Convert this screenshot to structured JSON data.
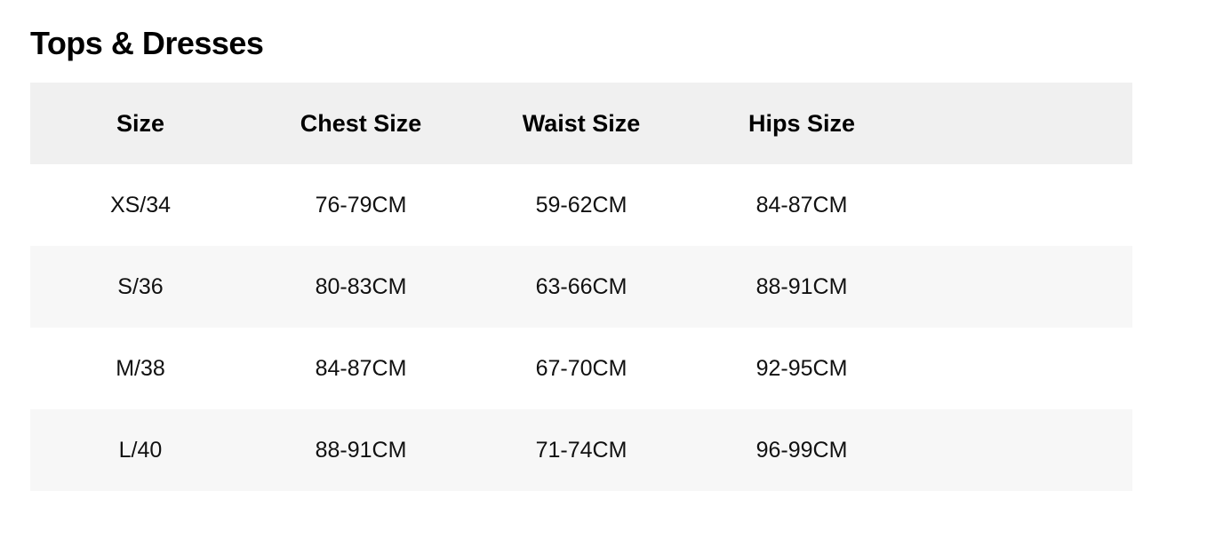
{
  "title": "Tops & Dresses",
  "table": {
    "headers": [
      "Size",
      "Chest Size",
      "Waist Size",
      "Hips Size",
      ""
    ],
    "rows": [
      [
        "XS/34",
        "76-79CM",
        "59-62CM",
        "84-87CM",
        ""
      ],
      [
        "S/36",
        "80-83CM",
        "63-66CM",
        "88-91CM",
        ""
      ],
      [
        "M/38",
        "84-87CM",
        "67-70CM",
        "92-95CM",
        ""
      ],
      [
        "L/40",
        "88-91CM",
        "71-74CM",
        "96-99CM",
        ""
      ]
    ]
  },
  "colors": {
    "header_bg": "#f0f0f0",
    "alt_row_bg": "#f7f7f7"
  }
}
